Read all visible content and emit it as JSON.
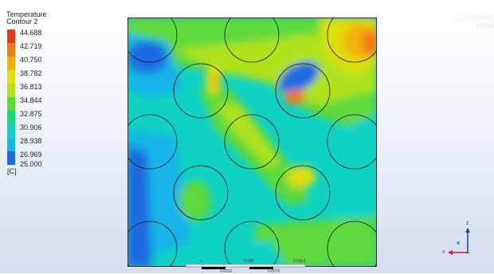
{
  "legend": {
    "title": "Temperature",
    "subtitle": "Contour 2",
    "unit": "[C]",
    "levels": [
      "44.688",
      "42.719",
      "40.750",
      "38.782",
      "36.813",
      "34.844",
      "32.875",
      "30.906",
      "28.938",
      "26.969",
      "25.000"
    ],
    "colors": [
      "#e8361b",
      "#f07a15",
      "#f5b00c",
      "#dede10",
      "#b0e21e",
      "#5fd93a",
      "#1cd67c",
      "#10d2c4",
      "#19b4e8",
      "#1f6ae0",
      "#2a2ad0"
    ]
  },
  "brand": {
    "name": "Ansys",
    "version": "2023 R"
  },
  "scale_bar": {
    "top_labels": [
      "0",
      "0.005",
      "0.01",
      "(m)"
    ],
    "bottom_labels": [
      "0.0025",
      "0.0075"
    ]
  },
  "axes": {
    "x_label": "x",
    "z_label": "z"
  }
}
